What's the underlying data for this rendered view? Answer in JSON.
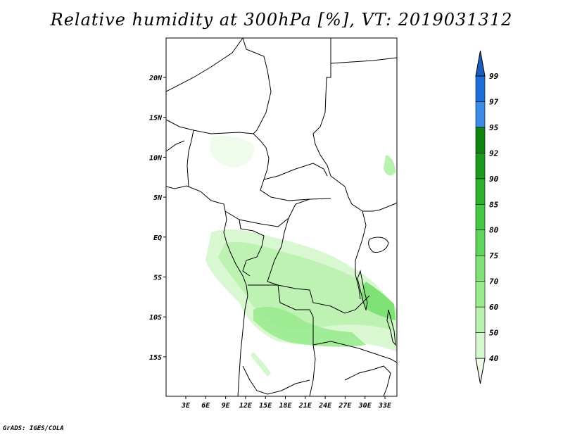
{
  "title": "Relative humidity at 300hPa [%], VT: 2019031312",
  "credit": "GrADS: IGES/COLA",
  "map": {
    "lon_labels": [
      "3E",
      "6E",
      "9E",
      "12E",
      "15E",
      "18E",
      "21E",
      "24E",
      "27E",
      "30E",
      "33E"
    ],
    "lat_labels": [
      "20N",
      "15N",
      "10N",
      "5N",
      "EQ",
      "5S",
      "10S",
      "15S"
    ]
  },
  "colorbar": {
    "levels": [
      "40",
      "50",
      "60",
      "70",
      "75",
      "80",
      "85",
      "90",
      "92",
      "95",
      "97",
      "99"
    ],
    "colors": [
      "#effcec",
      "#d5f7cd",
      "#b9f1ae",
      "#9aea8f",
      "#7fe276",
      "#5fd55a",
      "#44c844",
      "#2fb02f",
      "#1c9a1c",
      "#0f850f",
      "#3c8ce6",
      "#1f6fd8",
      "#1a5cc0"
    ]
  }
}
